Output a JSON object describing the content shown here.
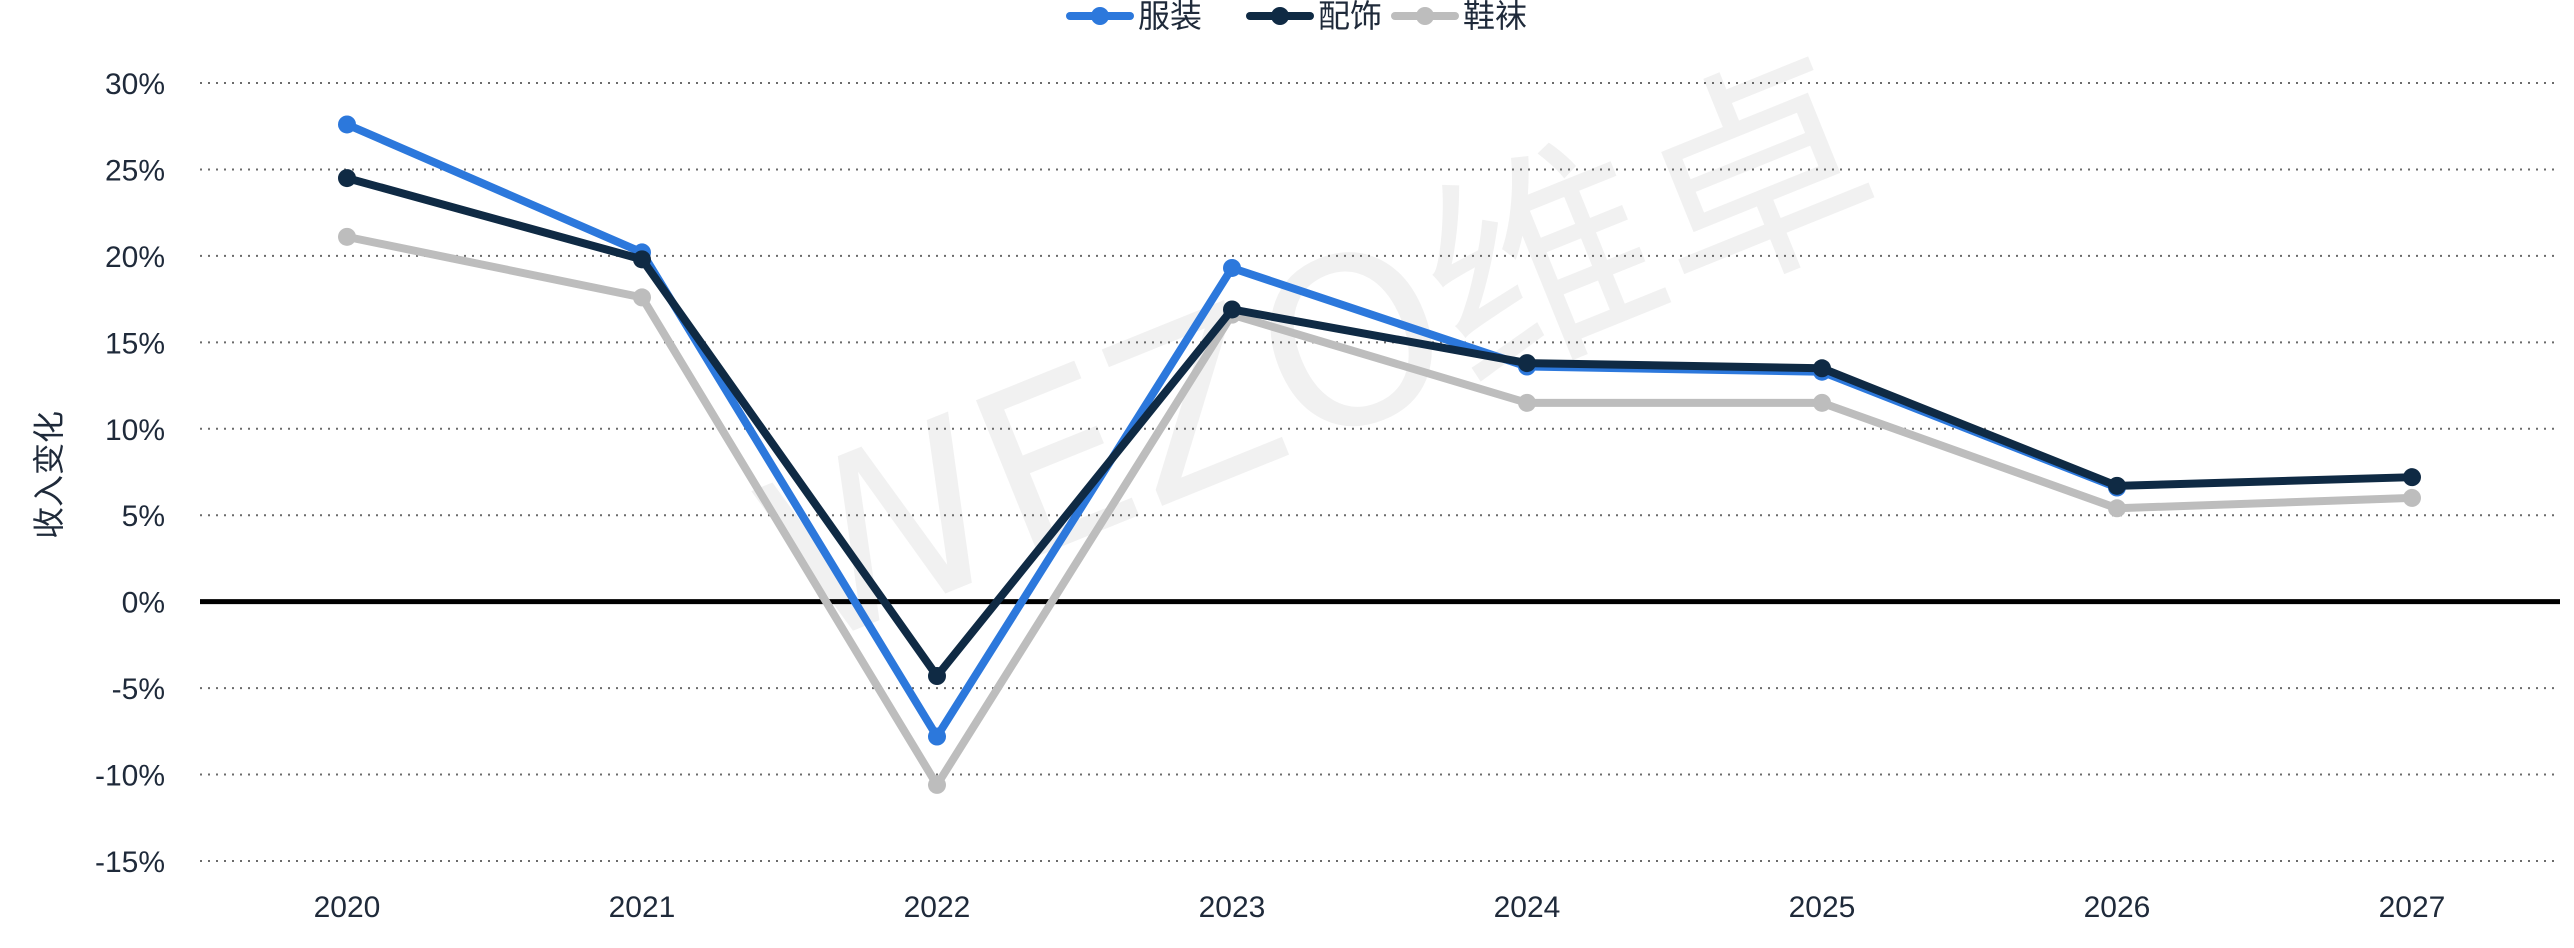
{
  "chart_data": {
    "type": "line",
    "ylabel": "收入变化",
    "xlabel": "",
    "title": "",
    "categories": [
      "2020",
      "2021",
      "2022",
      "2023",
      "2024",
      "2025",
      "2026",
      "2027"
    ],
    "ylim": [
      -15,
      30
    ],
    "yticks": [
      30,
      25,
      20,
      15,
      10,
      5,
      0,
      -5,
      -10,
      -15
    ],
    "ytick_labels": [
      "30%",
      "25%",
      "20%",
      "15%",
      "10%",
      "5%",
      "0%",
      "-5%",
      "-10%",
      "-15%"
    ],
    "grid": "horizontal dotted",
    "legend_position": "top-center",
    "zero_line": true,
    "watermark": "WEZO维卓",
    "series": [
      {
        "name": "服装",
        "color": "#2c78dc",
        "values": [
          27.6,
          20.2,
          -7.8,
          19.3,
          13.6,
          13.3,
          6.6,
          null
        ]
      },
      {
        "name": "配饰",
        "color": "#0f2a44",
        "values": [
          24.5,
          19.8,
          -4.3,
          16.9,
          13.8,
          13.5,
          6.7,
          7.2
        ]
      },
      {
        "name": "鞋袜",
        "color": "#bdbdbd",
        "values": [
          21.1,
          17.6,
          -10.6,
          16.6,
          11.5,
          11.5,
          5.4,
          6.0
        ]
      }
    ]
  }
}
